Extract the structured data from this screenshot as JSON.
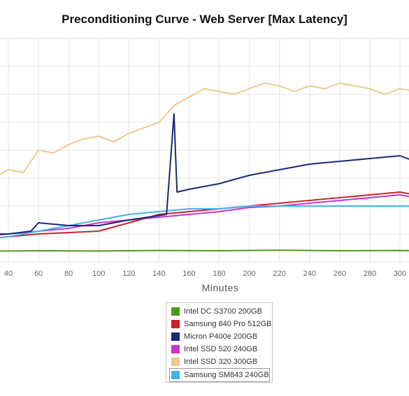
{
  "chart_data": {
    "type": "line",
    "title": "Preconditioning Curve - Web Server [Max Latency]",
    "xlabel": "Minutes",
    "ylabel": "",
    "xlim": [
      20,
      310
    ],
    "ylim": [
      0,
      80
    ],
    "x_ticks": [
      40,
      60,
      80,
      100,
      120,
      140,
      160,
      180,
      200,
      220,
      240,
      260,
      280,
      300
    ],
    "grid": true,
    "legend_position": "bottom-center",
    "series": [
      {
        "name": "Intel DC S3700 200GB",
        "color": "#4c9a1c",
        "x": [
          20,
          60,
          100,
          140,
          180,
          220,
          260,
          300,
          310
        ],
        "y": [
          3.8,
          4.0,
          3.9,
          4.1,
          4.0,
          4.2,
          4.0,
          4.1,
          4.0
        ]
      },
      {
        "name": "Samsung 840 Pro 512GB",
        "color": "#c8242e",
        "x": [
          20,
          40,
          60,
          80,
          100,
          120,
          140,
          160,
          180,
          200,
          220,
          240,
          260,
          280,
          300,
          310
        ],
        "y": [
          8,
          9,
          10,
          10.5,
          11,
          14,
          17,
          18,
          19,
          20,
          21,
          22,
          23,
          24,
          25,
          24
        ]
      },
      {
        "name": "Micron P400e 200GB",
        "color": "#1a2878",
        "x": [
          20,
          40,
          55,
          60,
          80,
          100,
          120,
          145,
          150,
          152,
          160,
          180,
          200,
          220,
          240,
          260,
          280,
          300,
          310
        ],
        "y": [
          10,
          10,
          11,
          14,
          13,
          13,
          15,
          17,
          53,
          25,
          26,
          28,
          31,
          33,
          35,
          36,
          37,
          38,
          36
        ]
      },
      {
        "name": "Intel SSD 520 240GB",
        "color": "#cc33cc",
        "x": [
          20,
          40,
          60,
          80,
          100,
          120,
          140,
          160,
          180,
          200,
          220,
          240,
          260,
          280,
          300,
          310
        ],
        "y": [
          9,
          10,
          11,
          12,
          14,
          15,
          16,
          17,
          18,
          19.5,
          20,
          21,
          22,
          23,
          24,
          23
        ]
      },
      {
        "name": "Intel SSD 320 300GB",
        "color": "#f0c888",
        "x": [
          20,
          30,
          40,
          50,
          60,
          70,
          80,
          90,
          100,
          110,
          120,
          130,
          140,
          150,
          160,
          170,
          180,
          190,
          200,
          210,
          220,
          230,
          240,
          250,
          260,
          270,
          280,
          290,
          300,
          310
        ],
        "y": [
          26,
          30,
          33,
          32,
          40,
          39,
          42,
          44,
          45,
          43,
          46,
          48,
          50,
          56,
          59,
          62,
          61,
          60,
          62,
          64,
          63,
          61,
          63,
          62,
          64,
          63,
          62,
          60,
          62,
          61
        ]
      },
      {
        "name": "Samsung SM843 240GB",
        "color": "#3fb4ea",
        "x": [
          20,
          40,
          60,
          80,
          100,
          120,
          140,
          160,
          180,
          200,
          220,
          240,
          260,
          280,
          300,
          310
        ],
        "y": [
          8,
          9,
          11,
          13,
          15,
          17,
          18,
          19,
          19,
          20,
          20,
          20,
          20,
          20,
          20,
          20
        ]
      }
    ]
  }
}
